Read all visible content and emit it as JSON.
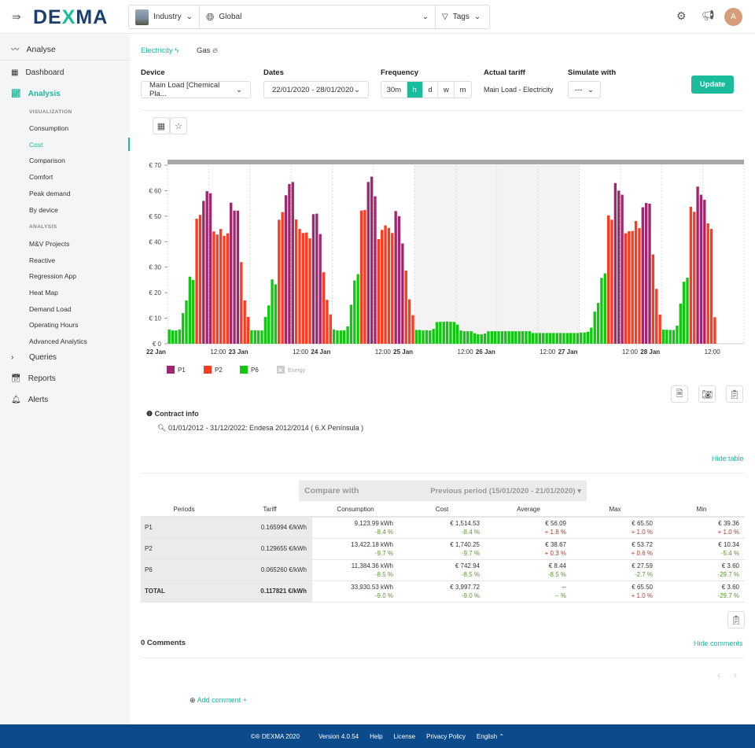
{
  "header": {
    "logo": "DEXMA",
    "industry": "Industry",
    "location": "Global",
    "tags": "Tags",
    "avatar": "A"
  },
  "sidebar": {
    "analyse": "Analyse",
    "dashboard": "Dashboard",
    "analysis": "Analysis",
    "visualization_heading": "VISUALIZATION",
    "visualization": [
      "Consumption",
      "Cost",
      "Comparison",
      "Comfort",
      "Peak demand",
      "By device"
    ],
    "analysis_heading": "ANALYSIS",
    "analysis_items": [
      "M&V Projects",
      "Reactive",
      "Regression App",
      "Heat Map",
      "Demand Load",
      "Operating Hours",
      "Advanced Analytics"
    ],
    "queries": "Queries",
    "reports": "Reports",
    "alerts": "Alerts",
    "active": "Cost"
  },
  "energy_tabs": {
    "electricity": "Electricity",
    "gas": "Gas"
  },
  "filters": {
    "device_label": "Device",
    "device_value": "Main Load [Chemical Pla...",
    "dates_label": "Dates",
    "dates_value": "22/01/2020 - 28/01/2020",
    "frequency_label": "Frequency",
    "frequency_options": [
      "30m",
      "h",
      "d",
      "w",
      "m"
    ],
    "frequency_selected": "h",
    "tariff_label": "Actual tariff",
    "tariff_value": "Main Load - Electricity",
    "simulate_label": "Simulate with",
    "simulate_value": "---",
    "update": "Update"
  },
  "colors": {
    "accent": "#1bbc9b",
    "P1": "#a0266e",
    "P2": "#ff3a20",
    "P6": "#10c810",
    "footer": "#0b4a8b"
  },
  "chart_data": {
    "type": "bar",
    "ylim": [
      0,
      70
    ],
    "yticks": [
      "€ 0",
      "€ 10",
      "€ 20",
      "€ 30",
      "€ 40",
      "€ 50",
      "€ 60",
      "€ 70"
    ],
    "xticks": [
      {
        "label": "22 Jan",
        "bold": true
      },
      {
        "label": "12:00"
      },
      {
        "label": "23 Jan",
        "bold": true
      },
      {
        "label": "12:00"
      },
      {
        "label": "24 Jan",
        "bold": true
      },
      {
        "label": "12:00"
      },
      {
        "label": "25 Jan",
        "bold": true
      },
      {
        "label": "12:00"
      },
      {
        "label": "26 Jan",
        "bold": true
      },
      {
        "label": "12:00"
      },
      {
        "label": "27 Jan",
        "bold": true
      },
      {
        "label": "12:00"
      },
      {
        "label": "28 Jan",
        "bold": true
      },
      {
        "label": "12:00"
      }
    ],
    "legend": [
      {
        "name": "P1",
        "color": "#a0266e"
      },
      {
        "name": "P2",
        "color": "#ff3a20"
      },
      {
        "name": "P6",
        "color": "#10c810"
      },
      {
        "name": "Energy",
        "color": "#bbbbbb",
        "disabled": true
      }
    ],
    "weekend_shaded": [
      "25 Jan",
      "26 Jan"
    ],
    "days": [
      {
        "date": "22 Jan",
        "periods": "666666662211122222111222",
        "values": [
          5.6,
          5.2,
          5.2,
          5.6,
          12,
          17,
          26.3,
          25,
          49,
          50.5,
          56,
          59.8,
          59,
          44,
          42.8,
          45,
          42.3,
          43.3,
          55.3,
          52.2,
          52.2,
          32,
          17,
          10.5
        ]
      },
      {
        "date": "23 Jan",
        "periods": "666666662211122222111222",
        "values": [
          5.3,
          5.3,
          5.2,
          5.2,
          10.5,
          15,
          25.2,
          23.3,
          48.6,
          51.6,
          58.2,
          62.6,
          63.4,
          48.7,
          45,
          43.4,
          43.6,
          41.3,
          50.8,
          51,
          43,
          28,
          17.2,
          11.5
        ]
      },
      {
        "date": "24 Jan",
        "periods": "666666662211122222111222",
        "values": [
          5.6,
          5.2,
          5.2,
          5.2,
          6.8,
          15.3,
          24.8,
          27.3,
          52.2,
          52.4,
          63.4,
          65.5,
          57.8,
          41,
          44.6,
          46.4,
          45.4,
          43.4,
          52,
          50,
          39.3,
          28.7,
          17.4,
          11.2
        ]
      },
      {
        "date": "25 Jan",
        "periods": "666666666666666666666666",
        "values": [
          5.4,
          5.4,
          5.2,
          5.3,
          5.2,
          5.8,
          8.5,
          8.6,
          8.6,
          8.7,
          8.6,
          8.5,
          7.5,
          5.2,
          4.9,
          4.9,
          4.9,
          4.1,
          3.7,
          3.7,
          4.0,
          4.9,
          4.9,
          4.9
        ]
      },
      {
        "date": "26 Jan",
        "periods": "666666666666666666666666",
        "values": [
          4.9,
          4.9,
          4.9,
          4.9,
          4.9,
          4.9,
          4.9,
          4.9,
          4.9,
          4.9,
          4.2,
          4.2,
          4.2,
          4.2,
          4.2,
          4.2,
          4.2,
          4.2,
          4.2,
          4.2,
          4.2,
          4.2,
          4.2,
          4.2
        ]
      },
      {
        "date": "27 Jan",
        "periods": "666666662211122222111222",
        "values": [
          4.4,
          4.4,
          4.7,
          6.3,
          12.6,
          16,
          25.8,
          27.6,
          50.3,
          48.6,
          63,
          60,
          58.4,
          43.3,
          44.1,
          44.2,
          48.1,
          45.3,
          53.5,
          55.2,
          54.9,
          35,
          21.5,
          11.4
        ]
      },
      {
        "date": "28 Jan",
        "periods": "6666666622111222",
        "values": [
          5.5,
          5.5,
          5.4,
          5.4,
          7.1,
          15.7,
          24.3,
          25.9,
          53.7,
          51.7,
          61.6,
          58.4,
          56.4,
          47.2,
          45,
          10.4
        ]
      }
    ]
  },
  "contract": {
    "title": "Contract info",
    "entry": "01/01/2012 - 31/12/2022: Endesa 2012/2014 ( 6.X Península )"
  },
  "hide_table": "Hide table",
  "compare": {
    "label": "Compare with",
    "value": "Previous period (15/01/2020 - 21/01/2020)"
  },
  "table": {
    "headers": [
      "Periods",
      "Tariff",
      "Consumption",
      "Cost",
      "Average",
      "Max",
      "Min"
    ],
    "rows": [
      {
        "period": "P1",
        "tariff": "0.165994 €/kWh",
        "cells": [
          [
            "9,123.99 kWh",
            "-8.4 %",
            "neg"
          ],
          [
            "€ 1,514.53",
            "-8.4 %",
            "neg"
          ],
          [
            "€ 56.09",
            "+ 1.8 %",
            "pos"
          ],
          [
            "€ 65.50",
            "+ 1.0 %",
            "pos"
          ],
          [
            "€ 39.36",
            "+ 1.0 %",
            "pos"
          ]
        ]
      },
      {
        "period": "P2",
        "tariff": "0.129655 €/kWh",
        "cells": [
          [
            "13,422.18 kWh",
            "-9.7 %",
            "neg"
          ],
          [
            "€ 1,740.25",
            "-9.7 %",
            "neg"
          ],
          [
            "€ 38.67",
            "+ 0.3 %",
            "pos"
          ],
          [
            "€ 53.72",
            "+ 0.6 %",
            "pos"
          ],
          [
            "€ 10.34",
            "-5.4 %",
            "neg"
          ]
        ]
      },
      {
        "period": "P6",
        "tariff": "0.065260 €/kWh",
        "cells": [
          [
            "11,384.36 kWh",
            "-8.5 %",
            "neg"
          ],
          [
            "€ 742.94",
            "-8.5 %",
            "neg"
          ],
          [
            "€ 8.44",
            "-8.5 %",
            "neg"
          ],
          [
            "€ 27.59",
            "-2.7 %",
            "neg"
          ],
          [
            "€ 3.60",
            "-29.7 %",
            "neg"
          ]
        ]
      },
      {
        "period": "TOTAL",
        "tariff": "0.117821 €/kWh",
        "cells": [
          [
            "33,930.53 kWh",
            "-9.0 %",
            "neg"
          ],
          [
            "€ 3,997.72",
            "-9.0 %",
            "neg"
          ],
          [
            "--",
            "-- %",
            "neg"
          ],
          [
            "€ 65.50",
            "+ 1.0 %",
            "pos"
          ],
          [
            "€ 3.60",
            "-29.7 %",
            "neg"
          ]
        ]
      }
    ]
  },
  "comments": {
    "count": "0 Comments",
    "hide": "Hide comments",
    "add": "Add comment +"
  },
  "footer": {
    "copyright": "©® DEXMA 2020",
    "version": "Version 4.0.54",
    "help": "Help",
    "license": "License",
    "privacy": "Privacy Policy",
    "language": "English"
  }
}
